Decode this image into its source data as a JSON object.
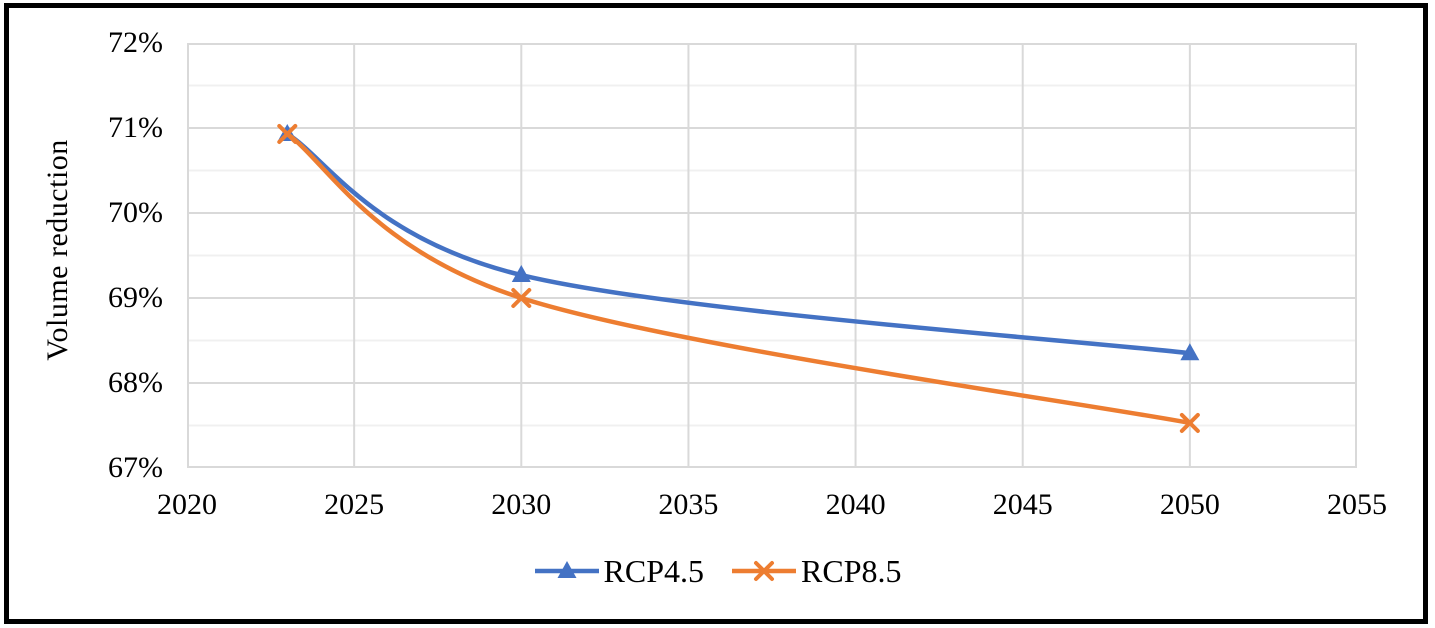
{
  "chart_data": {
    "type": "line",
    "title": "",
    "xlabel": "",
    "ylabel": "Volume reduction",
    "x": [
      2023,
      2030,
      2050
    ],
    "series": [
      {
        "name": "RCP4.5",
        "values": [
          70.93,
          69.27,
          68.35
        ],
        "color": "#4472C4",
        "marker": "triangle"
      },
      {
        "name": "RCP8.5",
        "values": [
          70.93,
          69.0,
          67.53
        ],
        "color": "#ED7D31",
        "marker": "x"
      }
    ],
    "xlim": [
      2020,
      2055
    ],
    "ylim": [
      67,
      72
    ],
    "x_major_step": 5,
    "y_major_step": 1,
    "y_minor_step": 0.5,
    "smoothed": true,
    "grid": {
      "on": true,
      "major_color": "#D9D9D9",
      "minor_color": "#F0F0F0"
    },
    "legend_position": "bottom",
    "y_tick_labels": [
      "72%",
      "71%",
      "70%",
      "69%",
      "68%",
      "67%"
    ],
    "x_tick_labels": [
      "2020",
      "2025",
      "2030",
      "2035",
      "2040",
      "2045",
      "2050",
      "2055"
    ]
  },
  "figure": {
    "border_color": "#000000",
    "background_color": "#ffffff"
  }
}
